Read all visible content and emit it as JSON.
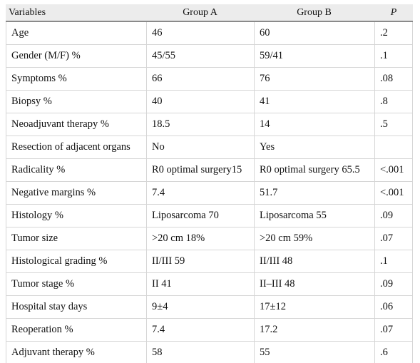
{
  "headers": [
    "Variables",
    "Group A",
    "Group B",
    "P"
  ],
  "rows": [
    [
      "Age",
      "46",
      "60",
      ".2"
    ],
    [
      "Gender (M/F) %",
      "45/55",
      "59/41",
      ".1"
    ],
    [
      "Symptoms %",
      "66",
      "76",
      ".08"
    ],
    [
      "Biopsy %",
      "40",
      "41",
      ".8"
    ],
    [
      "Neoadjuvant therapy %",
      "18.5",
      "14",
      ".5"
    ],
    [
      "Resection of adjacent organs",
      "No",
      "Yes",
      ""
    ],
    [
      "Radicality %",
      "R0 optimal surgery15",
      "R0 optimal surgery 65.5",
      "<.001"
    ],
    [
      "Negative margins %",
      "7.4",
      "51.7",
      "<.001"
    ],
    [
      "Histology %",
      "Liposarcoma 70",
      "Liposarcoma 55",
      ".09"
    ],
    [
      "Tumor size",
      ">20 cm 18%",
      ">20 cm 59%",
      ".07"
    ],
    [
      "Histological grading %",
      "II/III 59",
      "II/III 48",
      ".1"
    ],
    [
      "Tumor stage %",
      "II 41",
      "II–III 48",
      ".09"
    ],
    [
      "Hospital stay days",
      "9±4",
      "17±12",
      ".06"
    ],
    [
      "Reoperation %",
      "7.4",
      "17.2",
      ".07"
    ],
    [
      "Adjuvant therapy %",
      "58",
      "55",
      ".6"
    ]
  ]
}
